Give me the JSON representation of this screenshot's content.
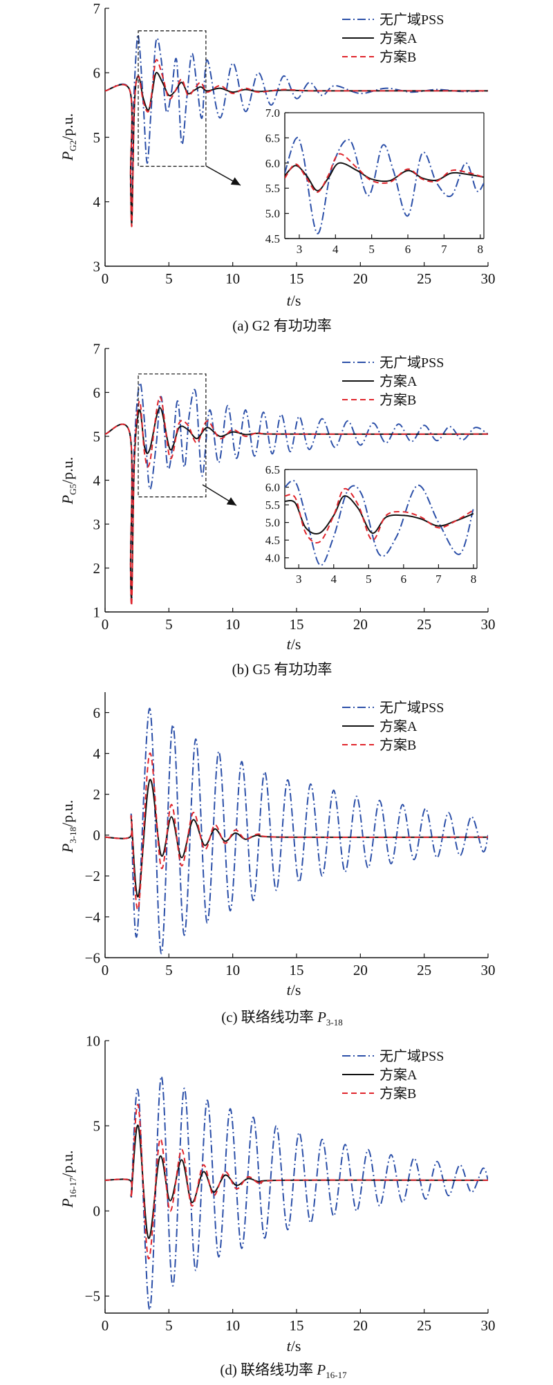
{
  "legend": {
    "items": [
      "无广域PSS",
      "方案A",
      "方案B"
    ]
  },
  "colors": {
    "no_wams": "#2b4fa8",
    "scheme_a": "#111111",
    "scheme_b": "#e0242b"
  },
  "chart_data": [
    {
      "type": "line",
      "caption": "(a) G2 有功功率",
      "ylabel_main": "P",
      "ylabel_sub": "G2",
      "ylabel_unit": "/p.u.",
      "xlabel_main": "t",
      "xlabel_unit": "/s",
      "xlim": [
        0,
        30
      ],
      "ylim": [
        3,
        7
      ],
      "xticks": [
        "0",
        "5",
        "10",
        "15",
        "20",
        "25",
        "30"
      ],
      "yticks": [
        "3",
        "4",
        "5",
        "6",
        "7"
      ],
      "grid": false,
      "legend_position": "top-right",
      "series": [
        {
          "name": "无广域PSS",
          "x": [
            0,
            1.95,
            2.0,
            2.1,
            2.2,
            2.5,
            2.7,
            3.0,
            3.3,
            3.6,
            4.0,
            4.4,
            4.8,
            5.2,
            5.6,
            6.0,
            6.4,
            6.8,
            7.2,
            7.6,
            8.0,
            9.0,
            10.0,
            11.0,
            12.0,
            13.0,
            14.0,
            15.0,
            16.0,
            17.0,
            18.0,
            20.0,
            22.0,
            24.0,
            26.0,
            28.0,
            30.0
          ],
          "y": [
            5.72,
            5.72,
            4.3,
            3.85,
            5.3,
            6.5,
            6.4,
            5.5,
            4.6,
            5.4,
            6.5,
            6.2,
            5.4,
            5.7,
            6.2,
            4.9,
            5.6,
            6.3,
            5.8,
            5.3,
            6.2,
            5.3,
            6.15,
            5.4,
            6.0,
            5.5,
            5.95,
            5.6,
            5.85,
            5.65,
            5.8,
            5.68,
            5.76,
            5.7,
            5.74,
            5.71,
            5.72
          ]
        },
        {
          "name": "方案A",
          "x": [
            0,
            1.95,
            2.0,
            2.1,
            2.3,
            2.6,
            3.0,
            3.4,
            3.7,
            4.0,
            4.5,
            5.0,
            5.5,
            6.0,
            6.5,
            7.0,
            7.5,
            8.0,
            9.0,
            10.0,
            11.0,
            12.0,
            14.0,
            16.0,
            20.0,
            30.0
          ],
          "y": [
            5.72,
            5.72,
            4.4,
            3.7,
            5.5,
            5.95,
            5.6,
            5.42,
            5.7,
            6.0,
            5.85,
            5.65,
            5.72,
            5.85,
            5.68,
            5.73,
            5.78,
            5.72,
            5.76,
            5.7,
            5.74,
            5.71,
            5.73,
            5.72,
            5.72,
            5.72
          ]
        },
        {
          "name": "方案B",
          "x": [
            0,
            1.95,
            2.0,
            2.1,
            2.3,
            2.6,
            3.0,
            3.4,
            3.7,
            4.0,
            4.5,
            5.0,
            5.5,
            6.0,
            6.5,
            7.0,
            7.5,
            8.0,
            9.0,
            10.0,
            11.0,
            12.0,
            14.0,
            16.0,
            20.0,
            30.0
          ],
          "y": [
            5.72,
            5.72,
            4.4,
            3.65,
            5.5,
            5.95,
            5.55,
            5.4,
            5.75,
            6.2,
            5.95,
            5.6,
            5.72,
            5.9,
            5.65,
            5.75,
            5.85,
            5.7,
            5.8,
            5.68,
            5.76,
            5.7,
            5.74,
            5.72,
            5.72,
            5.72
          ]
        }
      ],
      "inset": {
        "xlim": [
          2.6,
          8.1
        ],
        "ylim": [
          4.5,
          7.0
        ],
        "xticks": [
          "3",
          "4",
          "5",
          "6",
          "7",
          "8"
        ],
        "yticks": [
          "4.5",
          "5.0",
          "5.5",
          "6.0",
          "6.5",
          "7.0"
        ],
        "series": [
          {
            "name": "无广域PSS",
            "x": [
              2.6,
              2.9,
              3.1,
              3.5,
              3.9,
              4.4,
              4.9,
              5.3,
              5.6,
              6.0,
              6.4,
              6.8,
              7.2,
              7.6,
              7.9,
              8.1
            ],
            "y": [
              5.8,
              6.48,
              6.2,
              4.6,
              5.9,
              6.45,
              5.35,
              6.35,
              5.85,
              4.95,
              6.2,
              5.6,
              5.35,
              6.0,
              5.45,
              5.6
            ]
          },
          {
            "name": "方案A",
            "x": [
              2.6,
              2.9,
              3.2,
              3.5,
              3.8,
              4.1,
              4.6,
              5.0,
              5.5,
              6.0,
              6.4,
              6.8,
              7.2,
              7.6,
              8.1
            ],
            "y": [
              5.75,
              5.95,
              5.75,
              5.45,
              5.7,
              6.0,
              5.85,
              5.68,
              5.65,
              5.85,
              5.7,
              5.66,
              5.8,
              5.78,
              5.72
            ]
          },
          {
            "name": "方案B",
            "x": [
              2.6,
              2.9,
              3.2,
              3.5,
              3.8,
              4.1,
              4.6,
              5.0,
              5.5,
              6.0,
              6.4,
              6.8,
              7.2,
              7.6,
              8.1
            ],
            "y": [
              5.7,
              5.98,
              5.7,
              5.42,
              5.75,
              6.18,
              5.9,
              5.65,
              5.62,
              5.88,
              5.68,
              5.64,
              5.85,
              5.82,
              5.72
            ]
          }
        ]
      }
    },
    {
      "type": "line",
      "caption": "(b) G5 有功功率",
      "ylabel_main": "P",
      "ylabel_sub": "G5",
      "ylabel_unit": "/p.u.",
      "xlabel_main": "t",
      "xlabel_unit": "/s",
      "xlim": [
        0,
        30
      ],
      "ylim": [
        1,
        7
      ],
      "xticks": [
        "0",
        "5",
        "10",
        "15",
        "20",
        "25",
        "30"
      ],
      "yticks": [
        "1",
        "2",
        "3",
        "4",
        "5",
        "6",
        "7"
      ],
      "grid": false,
      "legend_position": "top-right",
      "series": [
        {
          "name": "无广域PSS",
          "x": [
            0,
            1.95,
            2.0,
            2.1,
            2.25,
            2.7,
            3.1,
            3.5,
            4.0,
            4.4,
            4.9,
            5.3,
            5.7,
            6.2,
            6.6,
            7.1,
            7.6,
            8.2,
            8.9,
            9.6,
            10.3,
            11.0,
            11.7,
            12.4,
            13.1,
            13.8,
            14.5,
            15.2,
            16.0,
            17.0,
            18.0,
            19.0,
            20.0,
            21.0,
            22.0,
            23.0,
            24.0,
            25.0,
            26.0,
            27.0,
            28.0,
            29.0,
            30.0
          ],
          "y": [
            5.05,
            5.05,
            2.0,
            1.35,
            4.5,
            6.2,
            5.3,
            3.8,
            4.8,
            5.9,
            4.3,
            4.8,
            5.8,
            4.3,
            5.5,
            6.0,
            4.1,
            5.6,
            4.4,
            5.7,
            4.5,
            5.6,
            4.55,
            5.55,
            4.6,
            5.5,
            4.65,
            5.45,
            4.7,
            5.4,
            4.75,
            5.35,
            4.8,
            5.3,
            4.85,
            5.28,
            4.88,
            5.25,
            4.9,
            5.22,
            4.92,
            5.2,
            5.05
          ]
        },
        {
          "name": "方案A",
          "x": [
            0,
            1.95,
            2.0,
            2.1,
            2.3,
            2.7,
            3.1,
            3.5,
            4.3,
            5.1,
            5.8,
            6.5,
            7.2,
            8.0,
            9.0,
            10.0,
            11.0,
            12.0,
            14.0,
            30.0
          ],
          "y": [
            5.05,
            5.05,
            2.0,
            1.5,
            4.5,
            5.6,
            4.75,
            4.7,
            5.65,
            4.7,
            5.2,
            5.15,
            4.95,
            5.2,
            5.0,
            5.1,
            5.04,
            5.07,
            5.05,
            5.05
          ]
        },
        {
          "name": "方案B",
          "x": [
            0,
            1.95,
            2.0,
            2.1,
            2.3,
            2.7,
            3.1,
            3.5,
            4.3,
            5.1,
            5.8,
            6.5,
            7.2,
            8.0,
            9.0,
            10.0,
            11.0,
            12.0,
            14.0,
            30.0
          ],
          "y": [
            5.05,
            5.05,
            2.0,
            1.3,
            4.5,
            5.8,
            4.6,
            4.4,
            5.9,
            4.5,
            5.3,
            5.25,
            4.85,
            5.35,
            4.95,
            5.15,
            5.0,
            5.08,
            5.05,
            5.05
          ]
        }
      ],
      "inset": {
        "xlim": [
          2.6,
          8.1
        ],
        "ylim": [
          3.7,
          6.5
        ],
        "xticks": [
          "3",
          "4",
          "5",
          "6",
          "7",
          "8"
        ],
        "yticks": [
          "4.0",
          "4.5",
          "5.0",
          "5.5",
          "6.0",
          "6.5"
        ],
        "series": [
          {
            "name": "无广域PSS",
            "x": [
              2.6,
              2.9,
              3.2,
              3.6,
              4.0,
              4.4,
              4.8,
              5.3,
              5.8,
              6.4,
              7.0,
              7.6,
              8.0
            ],
            "y": [
              6.0,
              6.15,
              5.2,
              3.8,
              4.6,
              5.9,
              5.8,
              4.1,
              4.6,
              6.05,
              5.0,
              4.1,
              5.4
            ]
          },
          {
            "name": "方案A",
            "x": [
              2.6,
              2.9,
              3.2,
              3.6,
              4.0,
              4.3,
              4.7,
              5.1,
              5.5,
              6.0,
              6.5,
              7.0,
              7.5,
              8.0
            ],
            "y": [
              5.6,
              5.55,
              4.85,
              4.7,
              5.2,
              5.75,
              5.4,
              4.7,
              5.15,
              5.2,
              5.1,
              4.9,
              5.05,
              5.25
            ]
          },
          {
            "name": "方案B",
            "x": [
              2.6,
              2.9,
              3.2,
              3.6,
              4.0,
              4.3,
              4.7,
              5.1,
              5.5,
              6.0,
              6.5,
              7.0,
              7.5,
              8.0
            ],
            "y": [
              5.75,
              5.7,
              4.7,
              4.45,
              5.2,
              5.95,
              5.5,
              4.5,
              5.2,
              5.3,
              5.15,
              4.85,
              5.05,
              5.35
            ]
          }
        ]
      }
    },
    {
      "type": "line",
      "caption": "(c) 联络线功率 ",
      "caption_main": "P",
      "caption_sub": "3-18",
      "ylabel_main": "P",
      "ylabel_sub": "3-18",
      "ylabel_unit": "/p.u.",
      "xlabel_main": "t",
      "xlabel_unit": "/s",
      "xlim": [
        0,
        30
      ],
      "ylim": [
        -6,
        7
      ],
      "xticks": [
        "0",
        "5",
        "10",
        "15",
        "20",
        "25",
        "30"
      ],
      "yticks": [
        "−6",
        "−4",
        "−2",
        "0",
        "2",
        "4",
        "6"
      ],
      "yticks_values": [
        -6,
        -4,
        -2,
        0,
        2,
        4,
        6
      ],
      "grid": false,
      "legend_position": "top-right",
      "series": [
        {
          "name": "无广域PSS",
          "x": [
            0,
            1.95,
            2.05,
            2.5,
            3.5,
            4.4,
            5.3,
            6.2,
            7.1,
            8.0,
            8.9,
            9.8,
            10.7,
            11.6,
            12.5,
            13.4,
            14.3,
            15.2,
            16.1,
            17.0,
            17.9,
            18.8,
            19.7,
            20.6,
            21.5,
            22.4,
            23.3,
            24.2,
            25.1,
            26.0,
            26.9,
            27.8,
            28.7,
            29.6,
            30.0
          ],
          "y": [
            -0.1,
            -0.1,
            0.8,
            -4.9,
            6.2,
            -5.8,
            5.4,
            -4.9,
            4.7,
            -4.3,
            4.1,
            -3.7,
            3.6,
            -3.2,
            3.1,
            -2.7,
            2.7,
            -2.3,
            2.5,
            -2.0,
            2.2,
            -1.8,
            1.9,
            -1.6,
            1.7,
            -1.4,
            1.5,
            -1.2,
            1.3,
            -1.1,
            1.1,
            -1.0,
            0.9,
            -0.8,
            0.0
          ]
        },
        {
          "name": "方案A",
          "x": [
            0,
            1.95,
            2.05,
            2.6,
            3.5,
            4.4,
            5.2,
            6.0,
            6.9,
            7.8,
            8.6,
            9.4,
            10.2,
            11.0,
            12.0,
            14.0,
            30.0
          ],
          "y": [
            -0.1,
            -0.1,
            0.8,
            -3.0,
            2.7,
            -1.0,
            0.9,
            -1.1,
            0.75,
            -0.5,
            0.3,
            -0.3,
            0.1,
            -0.2,
            0.0,
            -0.1,
            -0.1
          ]
        },
        {
          "name": "方案B",
          "x": [
            0,
            1.95,
            2.05,
            2.6,
            3.5,
            4.4,
            5.2,
            6.0,
            6.9,
            7.8,
            8.6,
            9.4,
            10.2,
            11.0,
            12.0,
            14.0,
            30.0
          ],
          "y": [
            -0.1,
            -0.1,
            0.8,
            -3.6,
            4.0,
            -1.6,
            1.5,
            -1.5,
            1.1,
            -0.7,
            0.5,
            -0.4,
            0.25,
            -0.2,
            0.05,
            -0.1,
            -0.1
          ]
        }
      ]
    },
    {
      "type": "line",
      "caption": "(d) 联络线功率 ",
      "caption_main": "P",
      "caption_sub": "16-17",
      "ylabel_main": "P",
      "ylabel_sub": "16-17",
      "ylabel_unit": "/p.u.",
      "xlabel_main": "t",
      "xlabel_unit": "/s",
      "xlim": [
        0,
        30
      ],
      "ylim": [
        -6,
        10
      ],
      "xticks": [
        "0",
        "5",
        "10",
        "15",
        "20",
        "25",
        "30"
      ],
      "yticks": [
        "−5",
        "0",
        "5",
        "10"
      ],
      "yticks_values": [
        -5,
        0,
        5,
        10
      ],
      "grid": false,
      "legend_position": "top-right",
      "series": [
        {
          "name": "无广域PSS",
          "x": [
            0,
            1.95,
            2.05,
            2.6,
            3.5,
            4.4,
            5.3,
            6.2,
            7.1,
            8.0,
            8.9,
            9.8,
            10.7,
            11.6,
            12.5,
            13.4,
            14.3,
            15.2,
            16.1,
            17.0,
            17.9,
            18.8,
            19.7,
            20.6,
            21.5,
            22.4,
            23.3,
            24.2,
            25.1,
            26.0,
            26.9,
            27.8,
            28.7,
            29.6,
            30.0
          ],
          "y": [
            1.8,
            1.8,
            1.0,
            7.0,
            -5.8,
            7.9,
            -4.4,
            7.2,
            -3.5,
            6.5,
            -2.7,
            6.0,
            -2.2,
            5.5,
            -1.6,
            5.0,
            -1.1,
            4.6,
            -0.7,
            4.2,
            -0.3,
            3.9,
            0.0,
            3.6,
            0.3,
            3.3,
            0.5,
            3.1,
            0.7,
            2.9,
            0.9,
            2.7,
            1.1,
            2.5,
            1.8
          ]
        },
        {
          "name": "方案A",
          "x": [
            0,
            1.95,
            2.05,
            2.6,
            3.4,
            4.3,
            5.1,
            6.0,
            6.8,
            7.7,
            8.5,
            9.4,
            10.3,
            11.2,
            12.2,
            14.0,
            30.0
          ],
          "y": [
            1.8,
            1.8,
            1.0,
            5.0,
            -1.6,
            3.2,
            0.6,
            3.0,
            0.5,
            2.3,
            1.1,
            2.1,
            1.5,
            1.9,
            1.7,
            1.8,
            1.8
          ]
        },
        {
          "name": "方案B",
          "x": [
            0,
            1.95,
            2.05,
            2.6,
            3.4,
            4.3,
            5.1,
            6.0,
            6.8,
            7.7,
            8.5,
            9.4,
            10.3,
            11.2,
            12.2,
            14.0,
            30.0
          ],
          "y": [
            1.8,
            1.8,
            1.0,
            6.2,
            -2.8,
            4.2,
            0.0,
            3.6,
            0.3,
            2.7,
            0.9,
            2.3,
            1.3,
            2.0,
            1.6,
            1.8,
            1.8
          ]
        }
      ]
    }
  ]
}
